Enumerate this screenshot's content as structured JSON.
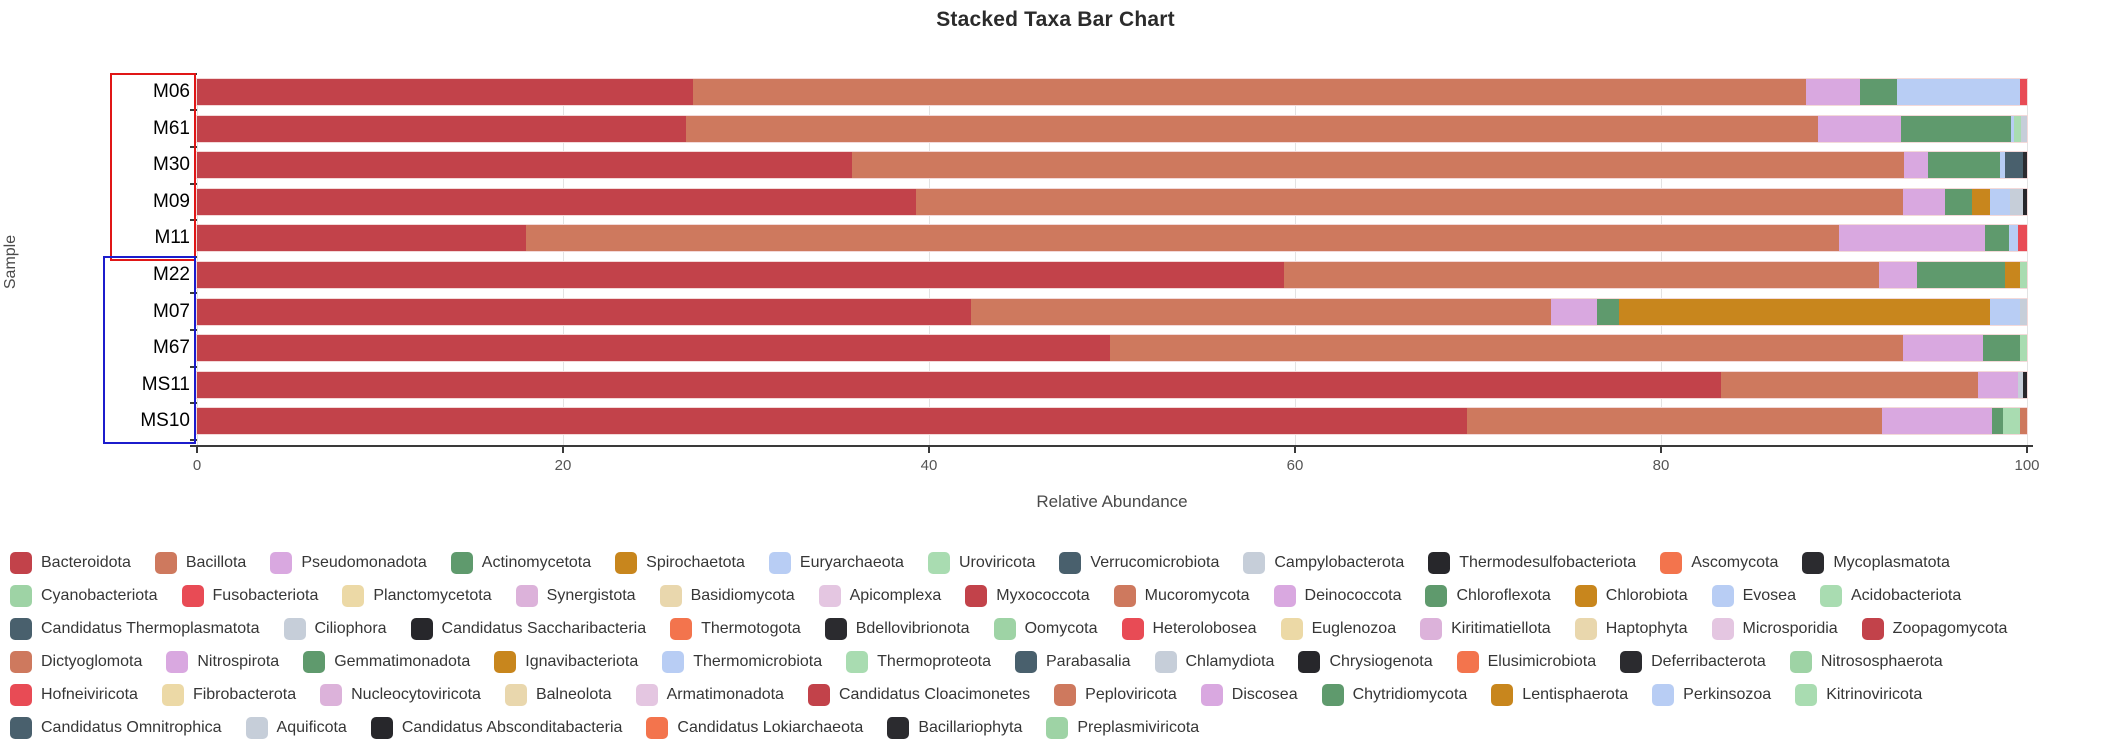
{
  "chart": {
    "title": "Stacked Taxa Bar Chart",
    "xlabel": "Relative Abundance",
    "ylabel": "Sample"
  },
  "chart_data": {
    "type": "bar",
    "orientation": "horizontal",
    "stacked": true,
    "title": "Stacked Taxa Bar Chart",
    "xlabel": "Relative Abundance",
    "ylabel": "Sample",
    "xlim": [
      0,
      100
    ],
    "xticks": [
      0,
      20,
      40,
      60,
      80,
      100
    ],
    "grid": true,
    "legend_position": "bottom",
    "samples": [
      "M06",
      "M61",
      "M30",
      "M09",
      "M11",
      "M22",
      "M07",
      "M67",
      "MS11",
      "MS10"
    ],
    "sample_groups": [
      {
        "name": "red-group",
        "samples": [
          "M06",
          "M61",
          "M30",
          "M09",
          "M11"
        ],
        "box_color": "#e01616"
      },
      {
        "name": "blue-group",
        "samples": [
          "M22",
          "M07",
          "M67",
          "MS11",
          "MS10"
        ],
        "box_color": "#1c1ccc"
      }
    ],
    "series": [
      {
        "sample": "M06",
        "segments": [
          {
            "taxon": "Bacteroidota",
            "value": 27.1
          },
          {
            "taxon": "Bacillota",
            "value": 60.8
          },
          {
            "taxon": "Pseudomonadota",
            "value": 3.0
          },
          {
            "taxon": "Actinomycetota",
            "value": 2.0
          },
          {
            "taxon": "Euryarchaeota",
            "value": 6.7
          },
          {
            "taxon": "Fusobacteriota",
            "value": 0.4
          }
        ]
      },
      {
        "sample": "M61",
        "segments": [
          {
            "taxon": "Bacteroidota",
            "value": 26.7
          },
          {
            "taxon": "Bacillota",
            "value": 61.9
          },
          {
            "taxon": "Pseudomonadota",
            "value": 4.5
          },
          {
            "taxon": "Actinomycetota",
            "value": 6.0
          },
          {
            "taxon": "Euryarchaeota",
            "value": 0.2
          },
          {
            "taxon": "Uroviricota",
            "value": 0.4
          },
          {
            "taxon": "Campylobacterota",
            "value": 0.3
          }
        ]
      },
      {
        "sample": "M30",
        "segments": [
          {
            "taxon": "Bacteroidota",
            "value": 35.8
          },
          {
            "taxon": "Bacillota",
            "value": 57.5
          },
          {
            "taxon": "Pseudomonadota",
            "value": 1.3
          },
          {
            "taxon": "Actinomycetota",
            "value": 3.9
          },
          {
            "taxon": "Euryarchaeota",
            "value": 0.3
          },
          {
            "taxon": "Verrucomicrobiota",
            "value": 1.0
          },
          {
            "taxon": "Mycoplasmatota",
            "value": 0.2
          }
        ]
      },
      {
        "sample": "M09",
        "segments": [
          {
            "taxon": "Bacteroidota",
            "value": 39.3
          },
          {
            "taxon": "Bacillota",
            "value": 53.9
          },
          {
            "taxon": "Pseudomonadota",
            "value": 2.3
          },
          {
            "taxon": "Actinomycetota",
            "value": 1.5
          },
          {
            "taxon": "Spirochaetota",
            "value": 1.0
          },
          {
            "taxon": "Euryarchaeota",
            "value": 1.1
          },
          {
            "taxon": "Campylobacterota",
            "value": 0.7
          },
          {
            "taxon": "Thermodesulfobacteriota",
            "value": 0.2
          }
        ]
      },
      {
        "sample": "M11",
        "segments": [
          {
            "taxon": "Bacteroidota",
            "value": 18.0
          },
          {
            "taxon": "Bacillota",
            "value": 71.7
          },
          {
            "taxon": "Pseudomonadota",
            "value": 8.0
          },
          {
            "taxon": "Actinomycetota",
            "value": 1.3
          },
          {
            "taxon": "Euryarchaeota",
            "value": 0.5
          },
          {
            "taxon": "Fusobacteriota",
            "value": 0.5
          }
        ]
      },
      {
        "sample": "M22",
        "segments": [
          {
            "taxon": "Bacteroidota",
            "value": 59.4
          },
          {
            "taxon": "Bacillota",
            "value": 32.5
          },
          {
            "taxon": "Pseudomonadota",
            "value": 2.1
          },
          {
            "taxon": "Actinomycetota",
            "value": 4.8
          },
          {
            "taxon": "Spirochaetota",
            "value": 0.8
          },
          {
            "taxon": "Uroviricota",
            "value": 0.4
          }
        ]
      },
      {
        "sample": "M07",
        "segments": [
          {
            "taxon": "Bacteroidota",
            "value": 42.3
          },
          {
            "taxon": "Bacillota",
            "value": 31.7
          },
          {
            "taxon": "Pseudomonadota",
            "value": 2.5
          },
          {
            "taxon": "Actinomycetota",
            "value": 1.2
          },
          {
            "taxon": "Spirochaetota",
            "value": 20.3
          },
          {
            "taxon": "Euryarchaeota",
            "value": 1.6
          },
          {
            "taxon": "Campylobacterota",
            "value": 0.4
          }
        ]
      },
      {
        "sample": "M67",
        "segments": [
          {
            "taxon": "Bacteroidota",
            "value": 49.9
          },
          {
            "taxon": "Bacillota",
            "value": 43.3
          },
          {
            "taxon": "Pseudomonadota",
            "value": 4.4
          },
          {
            "taxon": "Actinomycetota",
            "value": 2.0
          },
          {
            "taxon": "Uroviricota",
            "value": 0.4
          }
        ]
      },
      {
        "sample": "MS11",
        "segments": [
          {
            "taxon": "Bacteroidota",
            "value": 83.3
          },
          {
            "taxon": "Bacillota",
            "value": 14.0
          },
          {
            "taxon": "Pseudomonadota",
            "value": 2.2
          },
          {
            "taxon": "Campylobacterota",
            "value": 0.3
          },
          {
            "taxon": "Thermodesulfobacteriota",
            "value": 0.2
          }
        ]
      },
      {
        "sample": "MS10",
        "segments": [
          {
            "taxon": "Bacteroidota",
            "value": 69.4
          },
          {
            "taxon": "Bacillota",
            "value": 22.7
          },
          {
            "taxon": "Pseudomonadota",
            "value": 6.0
          },
          {
            "taxon": "Actinomycetota",
            "value": 0.6
          },
          {
            "taxon": "Uroviricota",
            "value": 0.9
          },
          {
            "taxon": "Mucoromycota",
            "value": 0.4
          }
        ]
      }
    ],
    "palette_cycle": [
      "#c2424a",
      "#ce795e",
      "#d9a8e0",
      "#5f9a6d",
      "#c8861d",
      "#b8cdf4",
      "#a9dcb1",
      "#49606d",
      "#c6ced9",
      "#27272b",
      "#f3744d",
      "#2b2b2f",
      "#9ed3a5",
      "#e84b55",
      "#ecd9a6",
      "#dcb2da",
      "#e9d7ad",
      "#e4c6e1"
    ],
    "legend_labels": [
      "Bacteroidota",
      "Bacillota",
      "Pseudomonadota",
      "Actinomycetota",
      "Spirochaetota",
      "Euryarchaeota",
      "Uroviricota",
      "Verrucomicrobiota",
      "Campylobacterota",
      "Thermodesulfobacteriota",
      "Ascomycota",
      "Mycoplasmatota",
      "Cyanobacteriota",
      "Fusobacteriota",
      "Planctomycetota",
      "Synergistota",
      "Basidiomycota",
      "Apicomplexa",
      "Myxococcota",
      "Mucoromycota",
      "Deinococcota",
      "Chloroflexota",
      "Chlorobiota",
      "Evosea",
      "Acidobacteriota",
      "Candidatus Thermoplasmatota",
      "Ciliophora",
      "Candidatus Saccharibacteria",
      "Thermotogota",
      "Bdellovibrionota",
      "Oomycota",
      "Heterolobosea",
      "Euglenozoa",
      "Kiritimatiellota",
      "Haptophyta",
      "Microsporidia",
      "Zoopagomycota",
      "Dictyoglomota",
      "Nitrospirota",
      "Gemmatimonadota",
      "Ignavibacteriota",
      "Thermomicrobiota",
      "Thermoproteota",
      "Parabasalia",
      "Chlamydiota",
      "Chrysiogenota",
      "Elusimicrobiota",
      "Deferribacterota",
      "Nitrososphaerota",
      "Hofneiviricota",
      "Fibrobacterota",
      "Nucleocytoviricota",
      "Balneolota",
      "Armatimonadota",
      "Candidatus Cloacimonetes",
      "Peploviricota",
      "Discosea",
      "Chytridiomycota",
      "Lentisphaerota",
      "Perkinsozoa",
      "Kitrinoviricota",
      "Candidatus Omnitrophica",
      "Aquificota",
      "Candidatus Absconditabacteria",
      "Candidatus Lokiarchaeota",
      "Bacillariophyta",
      "Preplasmiviricota"
    ],
    "legend_rows": [
      12,
      13,
      12,
      12,
      12,
      6
    ]
  }
}
